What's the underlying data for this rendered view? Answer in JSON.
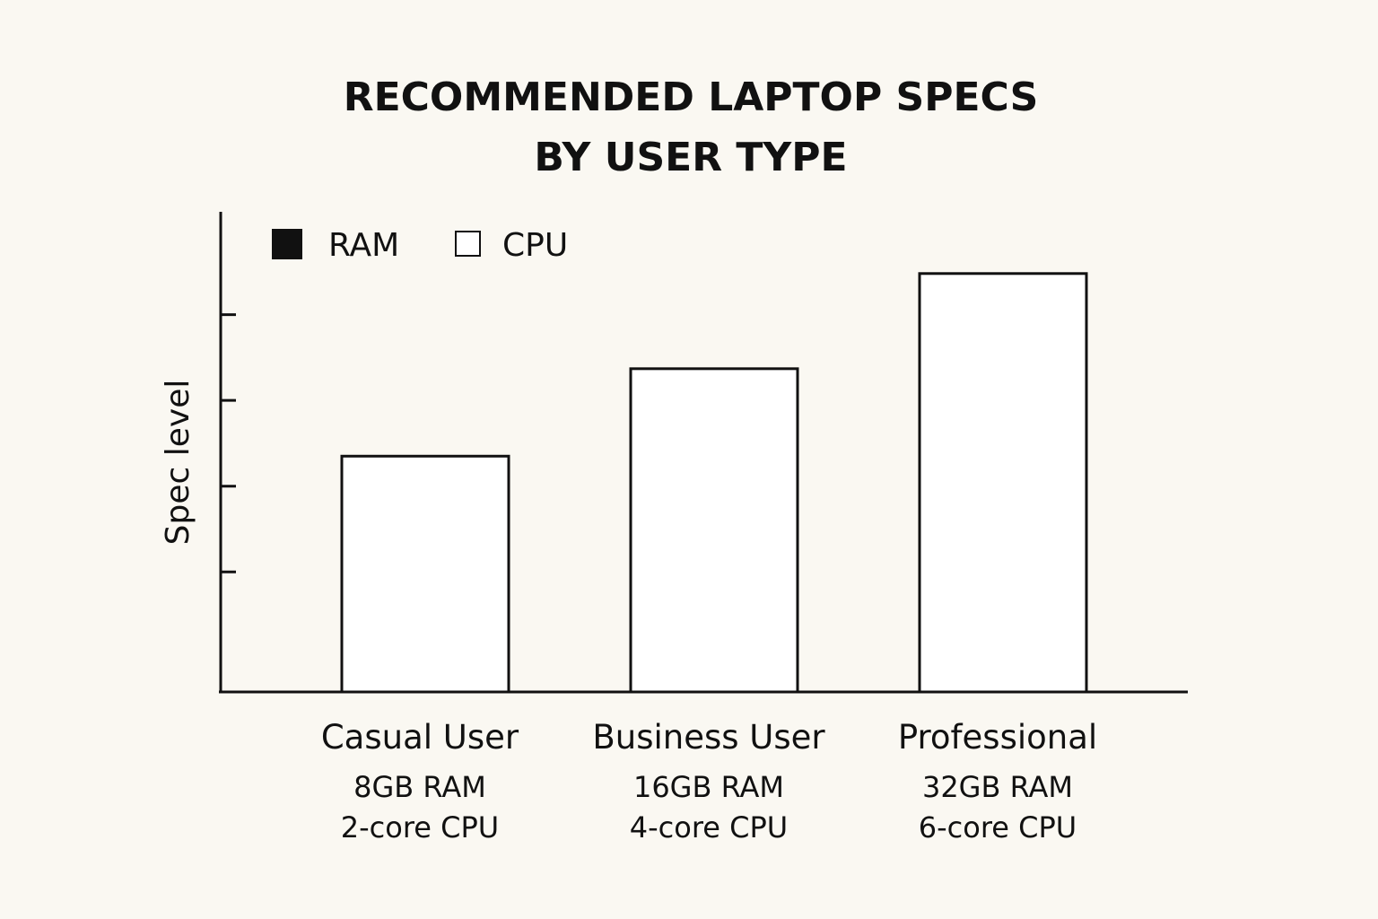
{
  "colors": {
    "background": "#faf8f2",
    "ink": "#111111",
    "ram_swatch": "#111111",
    "cpu_swatch": "#ffffff",
    "bar_fill": "#ffffff"
  },
  "chart_data": {
    "type": "bar",
    "title": [
      "RECOMMENDED LAPTOP SPECS",
      "BY USER TYPE"
    ],
    "ylabel": "Spec level",
    "xlabel": "",
    "grid": false,
    "legend_position": "top-left",
    "legend": [
      {
        "name": "RAM",
        "swatch": "filled"
      },
      {
        "name": "CPU",
        "swatch": "outline"
      }
    ],
    "ylim": [
      0,
      5.6
    ],
    "yticks": [
      1.4,
      2.4,
      3.4,
      4.4
    ],
    "categories": [
      "Casual User",
      "Business User",
      "Professional"
    ],
    "category_details": [
      [
        "8GB RAM",
        "2-core CPU"
      ],
      [
        "16GB RAM",
        "4-core CPU"
      ],
      [
        "32GB RAM",
        "6-core CPU"
      ]
    ],
    "values": [
      2.75,
      3.77,
      4.88
    ]
  }
}
